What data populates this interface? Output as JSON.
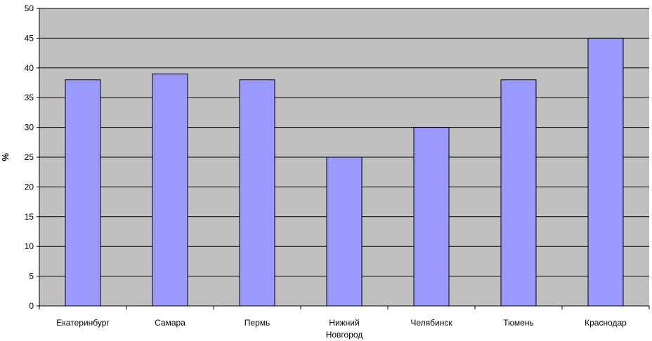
{
  "chart_data": {
    "type": "bar",
    "categories": [
      [
        "Екатеринбург"
      ],
      [
        "Самара"
      ],
      [
        "Пермь"
      ],
      [
        "Нижний",
        "Новгород"
      ],
      [
        "Челябинск"
      ],
      [
        "Тюмень"
      ],
      [
        "Краснодар"
      ]
    ],
    "values": [
      38,
      39,
      38,
      25,
      30,
      38,
      45
    ],
    "ylabel": "%",
    "ylim": [
      0,
      50
    ],
    "yticks": [
      0,
      5,
      10,
      15,
      20,
      25,
      30,
      35,
      40,
      45,
      50
    ],
    "grid": true,
    "colors": {
      "plot_background": "#c0c0c0",
      "bar_fill": "#9999ff",
      "bar_stroke": "#000000",
      "grid": "#000000"
    }
  }
}
